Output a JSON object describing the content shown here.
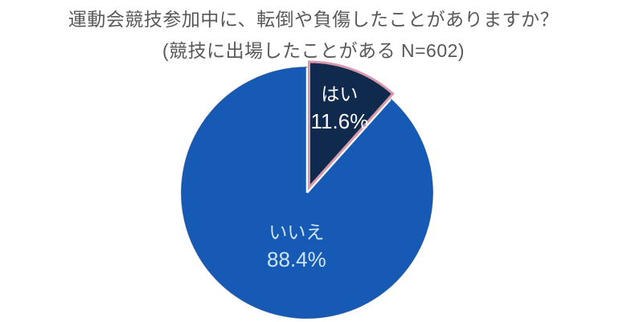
{
  "header": {
    "title": "運動会競技参加中に、転倒や負傷したことがありますか？",
    "subtitle": "(競技に出場したことがある N=602)"
  },
  "chart_data": {
    "type": "pie",
    "title": "運動会競技参加中に、転倒や負傷したことがありますか？",
    "subtitle": "(競技に出場したことがある N=602)",
    "sample_size_label": "N=602",
    "sample_size": 602,
    "start_angle_deg": 0,
    "direction": "clockwise",
    "legend_position": "none",
    "background_color": "#FFFFFF",
    "title_color": "#595959",
    "separator_color": "#FFFFFF",
    "slices": [
      {
        "label": "はい",
        "value": 11.6,
        "display": "11.6%",
        "color": "#0F2A4C",
        "stroke": "#D998AB",
        "stroke_width": 3,
        "exploded": true,
        "label_color": "#FFFFFF"
      },
      {
        "label": "いいえ",
        "value": 88.4,
        "display": "88.4%",
        "color": "#165AB5",
        "stroke": "#0F3B7A",
        "stroke_width": 1,
        "exploded": false,
        "label_color": "#CDE4F7"
      }
    ]
  }
}
